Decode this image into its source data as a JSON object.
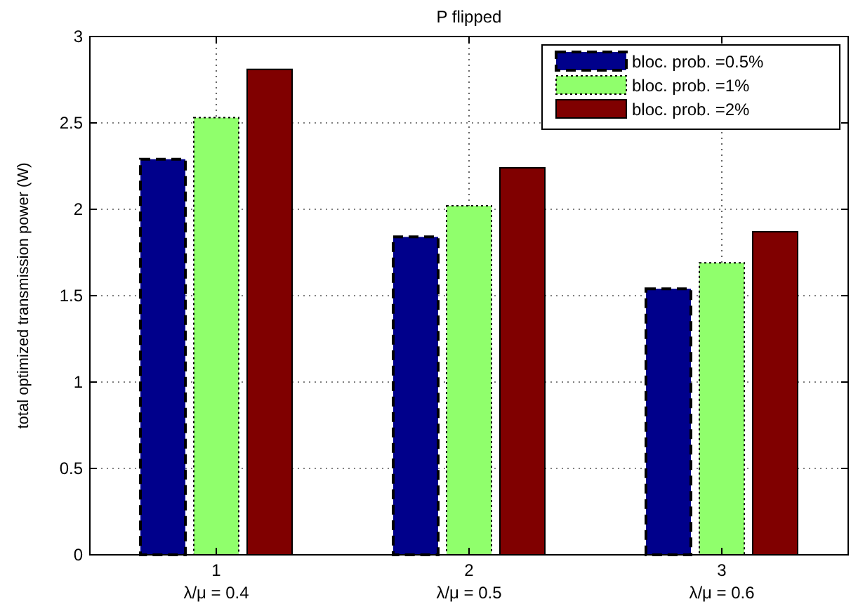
{
  "chart_data": {
    "type": "bar",
    "title": "P flipped",
    "ylabel": "total optimized transmission power (W)",
    "categories": [
      "1\nλ/μ = 0.4",
      "2\nλ/μ = 0.5",
      "3\nλ/μ = 0.6"
    ],
    "series": [
      {
        "name": "bloc. prob. =0.5%",
        "color": "#00008b",
        "values": [
          2.29,
          1.84,
          1.54
        ],
        "line_style": "dashed"
      },
      {
        "name": "bloc. prob. =1%",
        "color": "#90ff6c",
        "values": [
          2.53,
          2.02,
          1.69
        ],
        "line_style": "dotted"
      },
      {
        "name": "bloc. prob. =2%",
        "color": "#800000",
        "values": [
          2.81,
          2.24,
          1.87
        ],
        "line_style": "solid"
      }
    ],
    "ylim": [
      0,
      3
    ],
    "yticks": [
      0,
      0.5,
      1,
      1.5,
      2,
      2.5,
      3
    ],
    "grid": true,
    "legend": "top right"
  }
}
